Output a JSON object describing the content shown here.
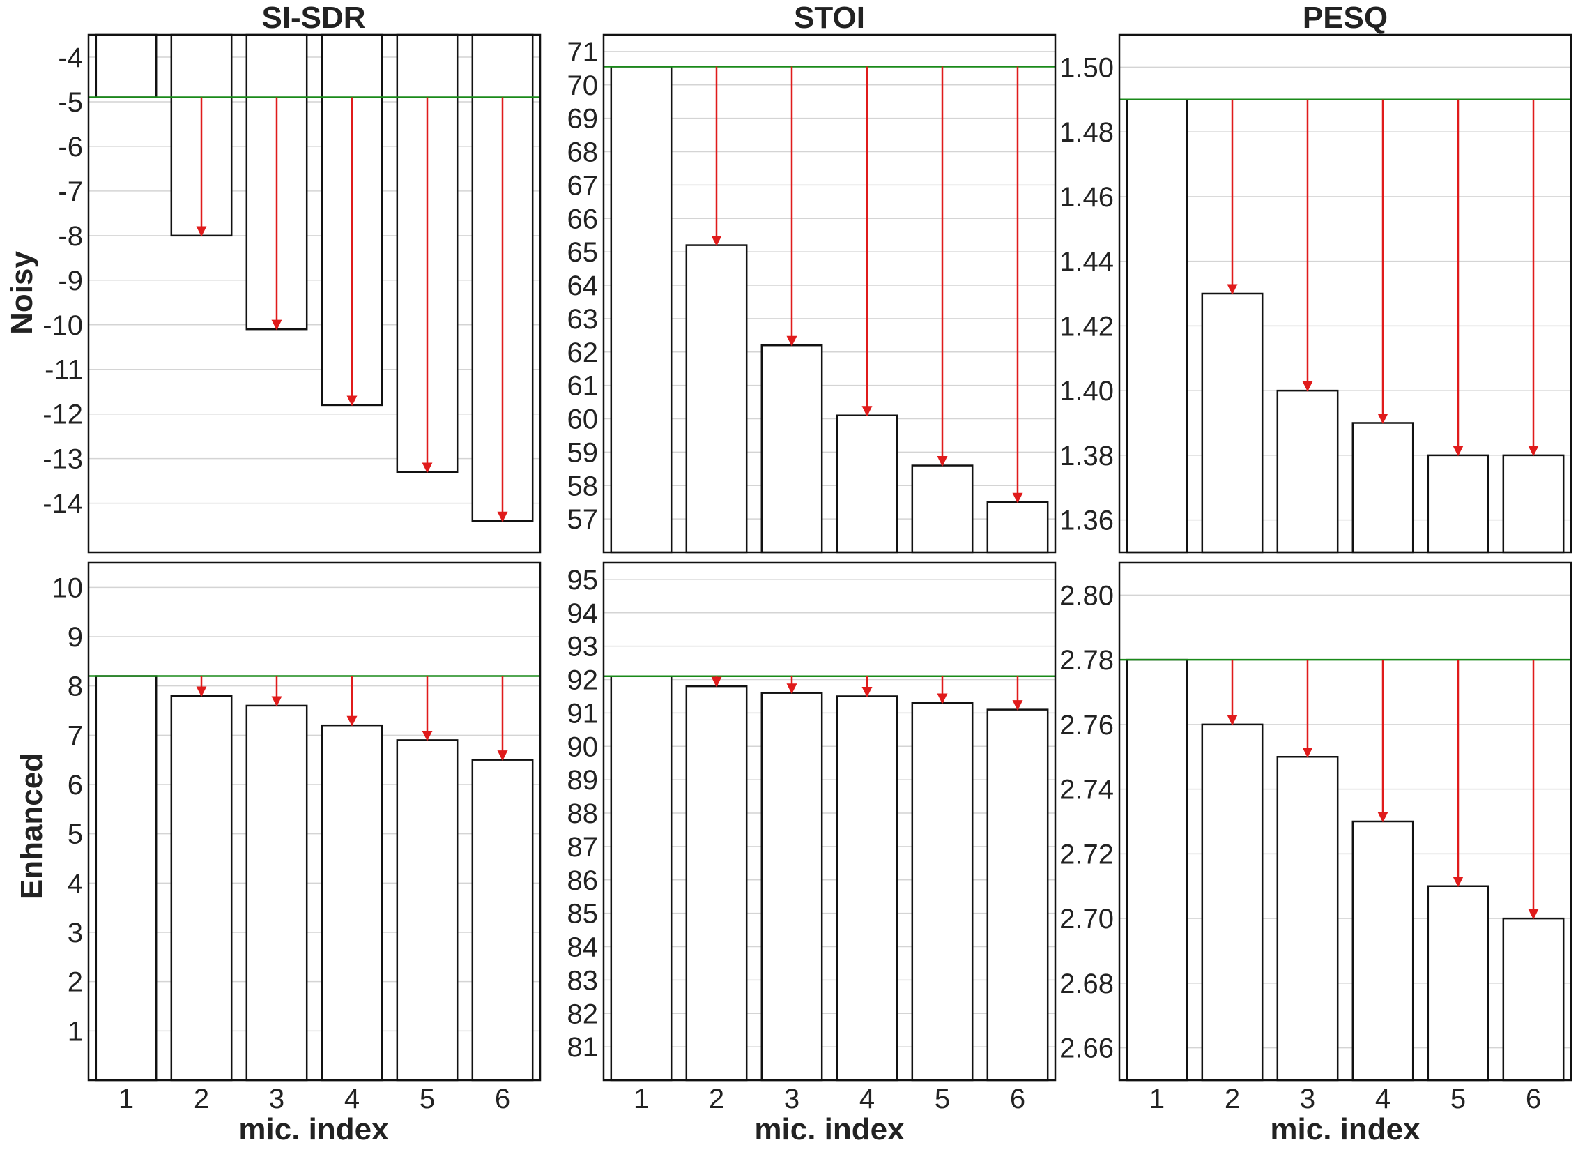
{
  "figure": {
    "column_titles": [
      "SI-SDR",
      "STOI",
      "PESQ"
    ],
    "row_labels": [
      "Noisy",
      "Enhanced"
    ],
    "xlabel": "mic. index"
  },
  "colors": {
    "reference_line": "#1a8a1a",
    "drop_arrow": "#e01b1b",
    "bar_edge": "#111111",
    "bar_fill": "#ffffff",
    "grid": "#d4d4d4"
  },
  "chart_data": [
    {
      "type": "bar",
      "id": "noisy-si-sdr",
      "row": "Noisy",
      "title": "SI-SDR",
      "categories": [
        "1",
        "2",
        "3",
        "4",
        "5",
        "6"
      ],
      "values": [
        -4.9,
        -8.0,
        -10.1,
        -11.8,
        -13.3,
        -14.4
      ],
      "reference": -4.9,
      "baseline": -3.5,
      "ylim": [
        -15.1,
        -3.5
      ],
      "yticks": [
        -4,
        -5,
        -6,
        -7,
        -8,
        -9,
        -10,
        -11,
        -12,
        -13,
        -14
      ],
      "decimals": 0,
      "xlabel": "",
      "show_xticks": false,
      "grid": true
    },
    {
      "type": "bar",
      "id": "noisy-stoi",
      "row": "Noisy",
      "title": "STOI",
      "categories": [
        "1",
        "2",
        "3",
        "4",
        "5",
        "6"
      ],
      "values": [
        70.55,
        65.2,
        62.2,
        60.1,
        58.6,
        57.5
      ],
      "reference": 70.55,
      "baseline": 56.0,
      "ylim": [
        56.0,
        71.5
      ],
      "yticks": [
        57,
        58,
        59,
        60,
        61,
        62,
        63,
        64,
        65,
        66,
        67,
        68,
        69,
        70,
        71
      ],
      "decimals": 0,
      "xlabel": "",
      "show_xticks": false,
      "grid": true
    },
    {
      "type": "bar",
      "id": "noisy-pesq",
      "row": "Noisy",
      "title": "PESQ",
      "categories": [
        "1",
        "2",
        "3",
        "4",
        "5",
        "6"
      ],
      "values": [
        1.49,
        1.43,
        1.4,
        1.39,
        1.38,
        1.38
      ],
      "reference": 1.49,
      "baseline": 1.35,
      "ylim": [
        1.35,
        1.51
      ],
      "yticks": [
        1.36,
        1.38,
        1.4,
        1.42,
        1.44,
        1.46,
        1.48,
        1.5
      ],
      "decimals": 2,
      "xlabel": "",
      "show_xticks": false,
      "grid": true
    },
    {
      "type": "bar",
      "id": "enhanced-si-sdr",
      "row": "Enhanced",
      "title": "",
      "categories": [
        "1",
        "2",
        "3",
        "4",
        "5",
        "6"
      ],
      "values": [
        8.2,
        7.8,
        7.6,
        7.2,
        6.9,
        6.5
      ],
      "reference": 8.2,
      "baseline": 0.0,
      "ylim": [
        0.0,
        10.5
      ],
      "yticks": [
        1,
        2,
        3,
        4,
        5,
        6,
        7,
        8,
        9,
        10
      ],
      "decimals": 0,
      "xlabel": "mic. index",
      "show_xticks": true,
      "grid": true
    },
    {
      "type": "bar",
      "id": "enhanced-stoi",
      "row": "Enhanced",
      "title": "",
      "categories": [
        "1",
        "2",
        "3",
        "4",
        "5",
        "6"
      ],
      "values": [
        92.1,
        91.8,
        91.6,
        91.5,
        91.3,
        91.1
      ],
      "reference": 92.1,
      "baseline": 80.0,
      "ylim": [
        80.0,
        95.5
      ],
      "yticks": [
        81,
        82,
        83,
        84,
        85,
        86,
        87,
        88,
        89,
        90,
        91,
        92,
        93,
        94,
        95
      ],
      "decimals": 0,
      "xlabel": "mic. index",
      "show_xticks": true,
      "grid": true
    },
    {
      "type": "bar",
      "id": "enhanced-pesq",
      "row": "Enhanced",
      "title": "",
      "categories": [
        "1",
        "2",
        "3",
        "4",
        "5",
        "6"
      ],
      "values": [
        2.78,
        2.76,
        2.75,
        2.73,
        2.71,
        2.7
      ],
      "reference": 2.78,
      "baseline": 2.65,
      "ylim": [
        2.65,
        2.81
      ],
      "yticks": [
        2.66,
        2.68,
        2.7,
        2.72,
        2.74,
        2.76,
        2.78,
        2.8
      ],
      "decimals": 2,
      "xlabel": "mic. index",
      "show_xticks": true,
      "grid": true
    }
  ]
}
